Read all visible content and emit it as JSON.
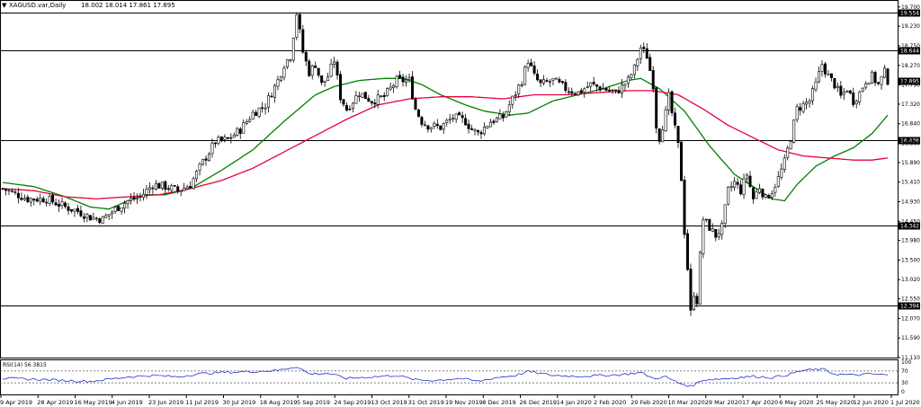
{
  "chart_data": {
    "type": "candlestick",
    "symbol": "XAGUSD.var,Daily",
    "ohlc_readout": "18.002 18.014 17.861 17.895",
    "price_axis_ticks": [
      "19.700",
      "19.230",
      "18.750",
      "18.270",
      "17.790",
      "17.320",
      "16.840",
      "16.360",
      "15.890",
      "15.410",
      "14.930",
      "14.450",
      "13.980",
      "13.500",
      "13.020",
      "12.550",
      "12.070",
      "11.590",
      "11.110"
    ],
    "ylim": [
      11.11,
      19.85
    ],
    "levels": [
      {
        "label": "19.554",
        "value": 19.554
      },
      {
        "label": "18.644",
        "value": 18.644
      },
      {
        "label": "16.436",
        "value": 16.436
      },
      {
        "label": "14.342",
        "value": 14.342
      },
      {
        "label": "12.394",
        "value": 12.394
      }
    ],
    "current_price": {
      "label": "17.895",
      "value": 17.895
    },
    "date_ticks": [
      "9 Apr 2019",
      "28 Apr 2019",
      "16 May 2019",
      "4 Jun 2019",
      "23 Jun 2019",
      "11 Jul 2019",
      "30 Jul 2019",
      "18 Aug 2019",
      "5 Sep 2019",
      "24 Sep 2019",
      "13 Oct 2019",
      "31 Oct 2019",
      "19 Nov 2019",
      "8 Dec 2019",
      "26 Dec 2019",
      "14 Jan 2020",
      "2 Feb 2020",
      "20 Feb 2020",
      "10 Mar 2020",
      "29 Mar 2020",
      "17 Apr 2020",
      "6 May 2020",
      "25 May 2020",
      "12 Jun 2020",
      "1 Jul 2020"
    ],
    "price_anchors": [
      [
        0,
        15.25
      ],
      [
        8,
        15.0
      ],
      [
        14,
        15.0
      ],
      [
        20,
        14.8
      ],
      [
        24,
        14.7
      ],
      [
        28,
        14.55
      ],
      [
        32,
        14.5
      ],
      [
        36,
        14.75
      ],
      [
        40,
        14.95
      ],
      [
        44,
        15.05
      ],
      [
        48,
        15.35
      ],
      [
        52,
        15.3
      ],
      [
        56,
        15.2
      ],
      [
        60,
        15.35
      ],
      [
        64,
        15.9
      ],
      [
        68,
        16.4
      ],
      [
        72,
        16.45
      ],
      [
        76,
        16.7
      ],
      [
        80,
        17.1
      ],
      [
        84,
        17.3
      ],
      [
        88,
        17.9
      ],
      [
        90,
        18.3
      ],
      [
        92,
        18.5
      ],
      [
        94,
        19.55
      ],
      [
        96,
        18.6
      ],
      [
        98,
        18.1
      ],
      [
        100,
        18.3
      ],
      [
        102,
        17.8
      ],
      [
        104,
        18.0
      ],
      [
        106,
        18.4
      ],
      [
        108,
        17.5
      ],
      [
        110,
        17.2
      ],
      [
        114,
        17.6
      ],
      [
        118,
        17.4
      ],
      [
        122,
        17.5
      ],
      [
        126,
        17.9
      ],
      [
        128,
        17.9
      ],
      [
        130,
        17.9
      ],
      [
        132,
        17.2
      ],
      [
        134,
        16.9
      ],
      [
        136,
        16.8
      ],
      [
        140,
        16.75
      ],
      [
        144,
        17.0
      ],
      [
        148,
        16.9
      ],
      [
        150,
        16.7
      ],
      [
        152,
        16.6
      ],
      [
        156,
        16.9
      ],
      [
        160,
        17.0
      ],
      [
        162,
        17.3
      ],
      [
        164,
        17.6
      ],
      [
        166,
        17.9
      ],
      [
        168,
        18.4
      ],
      [
        170,
        18.0
      ],
      [
        172,
        17.8
      ],
      [
        176,
        17.9
      ],
      [
        180,
        17.7
      ],
      [
        184,
        17.6
      ],
      [
        188,
        17.8
      ],
      [
        192,
        17.7
      ],
      [
        196,
        17.6
      ],
      [
        200,
        17.9
      ],
      [
        202,
        18.2
      ],
      [
        204,
        18.7
      ],
      [
        206,
        18.5
      ],
      [
        208,
        17.8
      ],
      [
        209,
        16.8
      ],
      [
        210,
        16.5
      ],
      [
        212,
        17.1
      ],
      [
        213,
        17.5
      ],
      [
        214,
        17.1
      ],
      [
        216,
        16.3
      ],
      [
        217,
        15.5
      ],
      [
        218,
        14.2
      ],
      [
        219,
        13.3
      ],
      [
        220,
        12.2
      ],
      [
        221,
        12.7
      ],
      [
        222,
        12.5
      ],
      [
        223,
        13.6
      ],
      [
        224,
        14.5
      ],
      [
        226,
        14.3
      ],
      [
        228,
        14.1
      ],
      [
        230,
        14.3
      ],
      [
        232,
        15.2
      ],
      [
        234,
        15.4
      ],
      [
        236,
        15.2
      ],
      [
        238,
        15.6
      ],
      [
        240,
        15.0
      ],
      [
        242,
        15.3
      ],
      [
        244,
        15.0
      ],
      [
        246,
        15.2
      ],
      [
        248,
        15.5
      ],
      [
        250,
        15.9
      ],
      [
        252,
        16.5
      ],
      [
        254,
        17.2
      ],
      [
        256,
        17.3
      ],
      [
        258,
        17.4
      ],
      [
        260,
        17.8
      ],
      [
        262,
        18.3
      ],
      [
        264,
        18.0
      ],
      [
        266,
        17.8
      ],
      [
        268,
        17.5
      ],
      [
        270,
        17.7
      ],
      [
        272,
        17.4
      ],
      [
        274,
        17.6
      ],
      [
        276,
        17.9
      ],
      [
        278,
        18.0
      ],
      [
        280,
        17.8
      ],
      [
        282,
        18.1
      ],
      [
        283,
        17.9
      ]
    ],
    "moving_averages": [
      {
        "color": "#008000",
        "points": [
          [
            0,
            15.4
          ],
          [
            10,
            15.3
          ],
          [
            20,
            15.05
          ],
          [
            28,
            14.8
          ],
          [
            34,
            14.75
          ],
          [
            40,
            14.95
          ],
          [
            46,
            15.1
          ],
          [
            52,
            15.1
          ],
          [
            60,
            15.25
          ],
          [
            70,
            15.7
          ],
          [
            80,
            16.2
          ],
          [
            90,
            16.9
          ],
          [
            100,
            17.55
          ],
          [
            106,
            17.75
          ],
          [
            114,
            17.9
          ],
          [
            122,
            17.95
          ],
          [
            128,
            17.95
          ],
          [
            134,
            17.8
          ],
          [
            140,
            17.55
          ],
          [
            148,
            17.3
          ],
          [
            154,
            17.15
          ],
          [
            162,
            17.05
          ],
          [
            168,
            17.1
          ],
          [
            176,
            17.4
          ],
          [
            184,
            17.55
          ],
          [
            192,
            17.7
          ],
          [
            200,
            17.9
          ],
          [
            204,
            17.95
          ],
          [
            210,
            17.7
          ],
          [
            218,
            17.15
          ],
          [
            226,
            16.3
          ],
          [
            234,
            15.6
          ],
          [
            240,
            15.3
          ],
          [
            246,
            15.0
          ],
          [
            250,
            14.95
          ],
          [
            254,
            15.35
          ],
          [
            260,
            15.8
          ],
          [
            266,
            16.05
          ],
          [
            272,
            16.25
          ],
          [
            278,
            16.6
          ],
          [
            283,
            17.05
          ]
        ]
      },
      {
        "color": "#e8003a",
        "points": [
          [
            0,
            15.25
          ],
          [
            10,
            15.2
          ],
          [
            20,
            15.05
          ],
          [
            30,
            15.0
          ],
          [
            40,
            15.05
          ],
          [
            50,
            15.1
          ],
          [
            60,
            15.25
          ],
          [
            70,
            15.45
          ],
          [
            80,
            15.75
          ],
          [
            90,
            16.15
          ],
          [
            100,
            16.55
          ],
          [
            110,
            16.95
          ],
          [
            120,
            17.3
          ],
          [
            130,
            17.45
          ],
          [
            140,
            17.5
          ],
          [
            150,
            17.5
          ],
          [
            160,
            17.45
          ],
          [
            170,
            17.55
          ],
          [
            180,
            17.55
          ],
          [
            190,
            17.6
          ],
          [
            200,
            17.65
          ],
          [
            208,
            17.65
          ],
          [
            216,
            17.55
          ],
          [
            224,
            17.2
          ],
          [
            232,
            16.8
          ],
          [
            240,
            16.5
          ],
          [
            248,
            16.2
          ],
          [
            256,
            16.05
          ],
          [
            264,
            16.0
          ],
          [
            272,
            15.95
          ],
          [
            278,
            15.95
          ],
          [
            283,
            16.0
          ]
        ]
      }
    ],
    "rsi": {
      "label": "RSI(14) 56.3815",
      "ticks": [
        "100",
        "70",
        "30",
        "0"
      ],
      "ylim": [
        0,
        100
      ],
      "levels": [
        70,
        30
      ],
      "anchors": [
        [
          0,
          45
        ],
        [
          10,
          42
        ],
        [
          20,
          38
        ],
        [
          28,
          35
        ],
        [
          34,
          42
        ],
        [
          40,
          50
        ],
        [
          48,
          55
        ],
        [
          56,
          50
        ],
        [
          62,
          60
        ],
        [
          70,
          65
        ],
        [
          80,
          68
        ],
        [
          88,
          72
        ],
        [
          94,
          85
        ],
        [
          98,
          60
        ],
        [
          104,
          62
        ],
        [
          110,
          45
        ],
        [
          118,
          50
        ],
        [
          126,
          55
        ],
        [
          132,
          40
        ],
        [
          138,
          38
        ],
        [
          146,
          45
        ],
        [
          152,
          35
        ],
        [
          158,
          48
        ],
        [
          164,
          55
        ],
        [
          168,
          68
        ],
        [
          176,
          55
        ],
        [
          184,
          52
        ],
        [
          192,
          55
        ],
        [
          198,
          58
        ],
        [
          204,
          65
        ],
        [
          208,
          45
        ],
        [
          212,
          50
        ],
        [
          216,
          30
        ],
        [
          220,
          18
        ],
        [
          224,
          40
        ],
        [
          232,
          45
        ],
        [
          240,
          52
        ],
        [
          246,
          48
        ],
        [
          250,
          55
        ],
        [
          256,
          72
        ],
        [
          262,
          76
        ],
        [
          266,
          60
        ],
        [
          272,
          56
        ],
        [
          278,
          60
        ],
        [
          283,
          56
        ]
      ]
    }
  }
}
